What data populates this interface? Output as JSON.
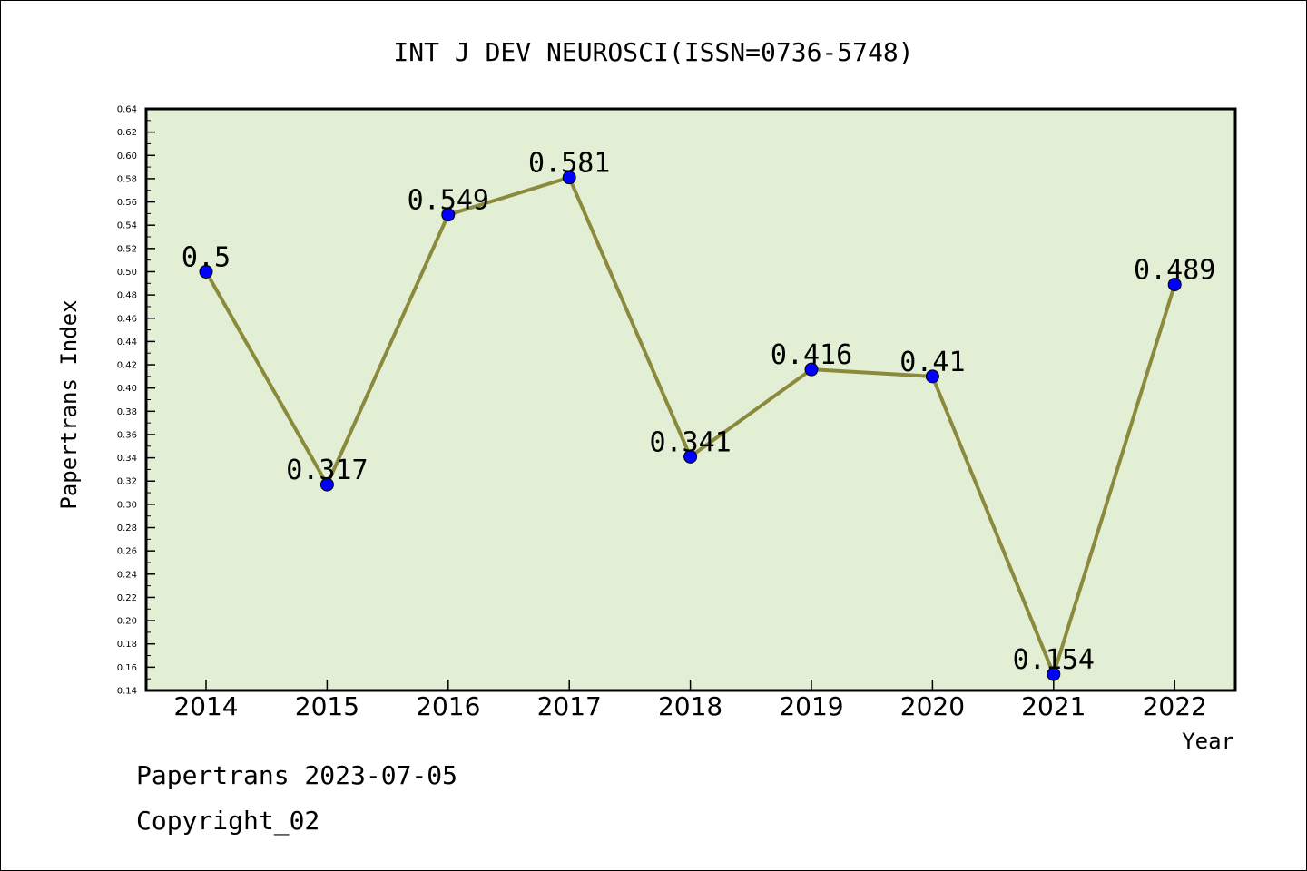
{
  "chart_data": {
    "type": "line",
    "title": "INT J DEV NEUROSCI(ISSN=0736-5748)",
    "xlabel": "Year",
    "ylabel": "Papertrans Index",
    "categories": [
      "2014",
      "2015",
      "2016",
      "2017",
      "2018",
      "2019",
      "2020",
      "2021",
      "2022"
    ],
    "series": [
      {
        "values": [
          0.5,
          0.317,
          0.549,
          0.581,
          0.341,
          0.416,
          0.41,
          0.154,
          0.489
        ],
        "labels": [
          "0.5",
          "0.317",
          "0.549",
          "0.581",
          "0.341",
          "0.416",
          "0.41",
          "0.154",
          "0.489"
        ]
      }
    ],
    "ylim": [
      0.14,
      0.64
    ],
    "ytick_step": 0.02,
    "grid": false,
    "legend": "none",
    "colors": {
      "plot_background": "#e2efd4",
      "line": "#8b8a3c",
      "marker": "#0000ff"
    }
  },
  "footer": {
    "line1": "Papertrans 2023-07-05",
    "line2": "Copyright_02"
  }
}
